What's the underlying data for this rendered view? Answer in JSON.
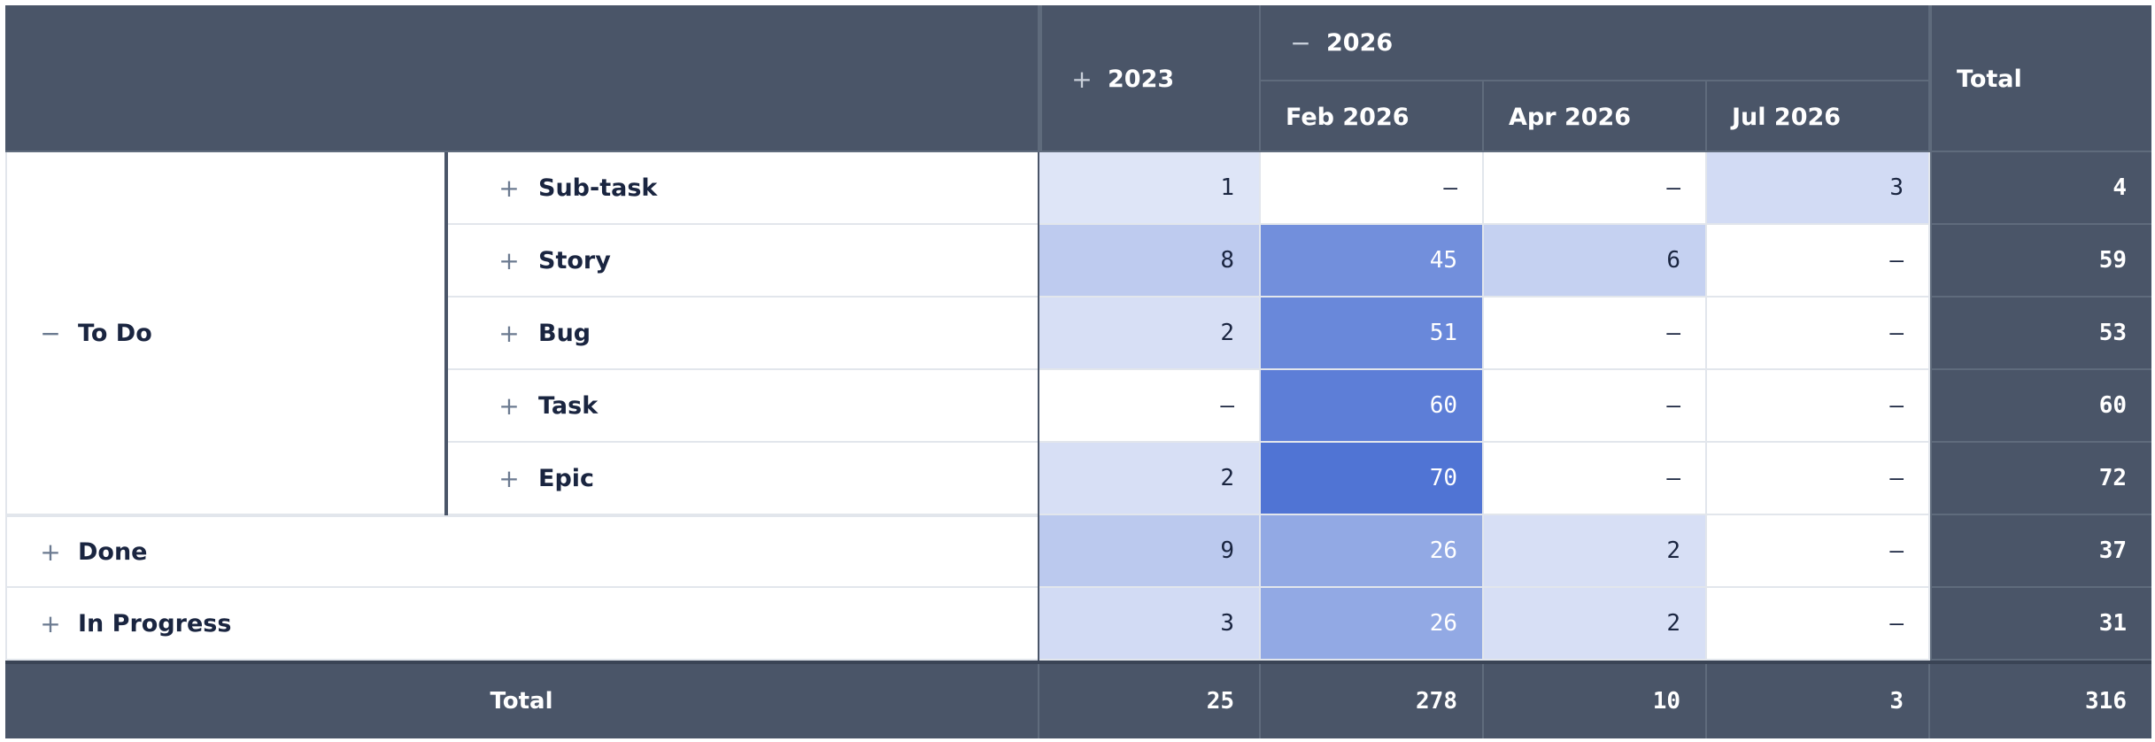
{
  "header": {
    "col_groups": [
      {
        "toggle": "+",
        "label": "2023"
      },
      {
        "toggle": "−",
        "label": "2026",
        "subcolumns": [
          "Feb 2026",
          "Apr 2026",
          "Jul 2026"
        ]
      }
    ],
    "total_label": "Total"
  },
  "rows": {
    "todo_group": {
      "toggle": "−",
      "label": "To Do"
    },
    "items": [
      {
        "toggle": "+",
        "label": "Sub-task",
        "values": [
          "1",
          "–",
          "–",
          "3"
        ],
        "total": "4"
      },
      {
        "toggle": "+",
        "label": "Story",
        "values": [
          "8",
          "45",
          "6",
          "–"
        ],
        "total": "59"
      },
      {
        "toggle": "+",
        "label": "Bug",
        "values": [
          "2",
          "51",
          "–",
          "–"
        ],
        "total": "53"
      },
      {
        "toggle": "+",
        "label": "Task",
        "values": [
          "–",
          "60",
          "–",
          "–"
        ],
        "total": "60"
      },
      {
        "toggle": "+",
        "label": "Epic",
        "values": [
          "2",
          "70",
          "–",
          "–"
        ],
        "total": "72"
      },
      {
        "toggle": "+",
        "label": "Done",
        "values": [
          "9",
          "26",
          "2",
          "–"
        ],
        "total": "37"
      },
      {
        "toggle": "+",
        "label": "In Progress",
        "values": [
          "3",
          "26",
          "2",
          "–"
        ],
        "total": "31"
      }
    ]
  },
  "footer": {
    "label": "Total",
    "values": [
      "25",
      "278",
      "10",
      "3"
    ],
    "total": "316"
  },
  "colors": {
    "header_bg": "#4a5568",
    "heat_max": "#5074d4",
    "heat_min": "#ffffff",
    "text_dark": "#1a2540"
  }
}
